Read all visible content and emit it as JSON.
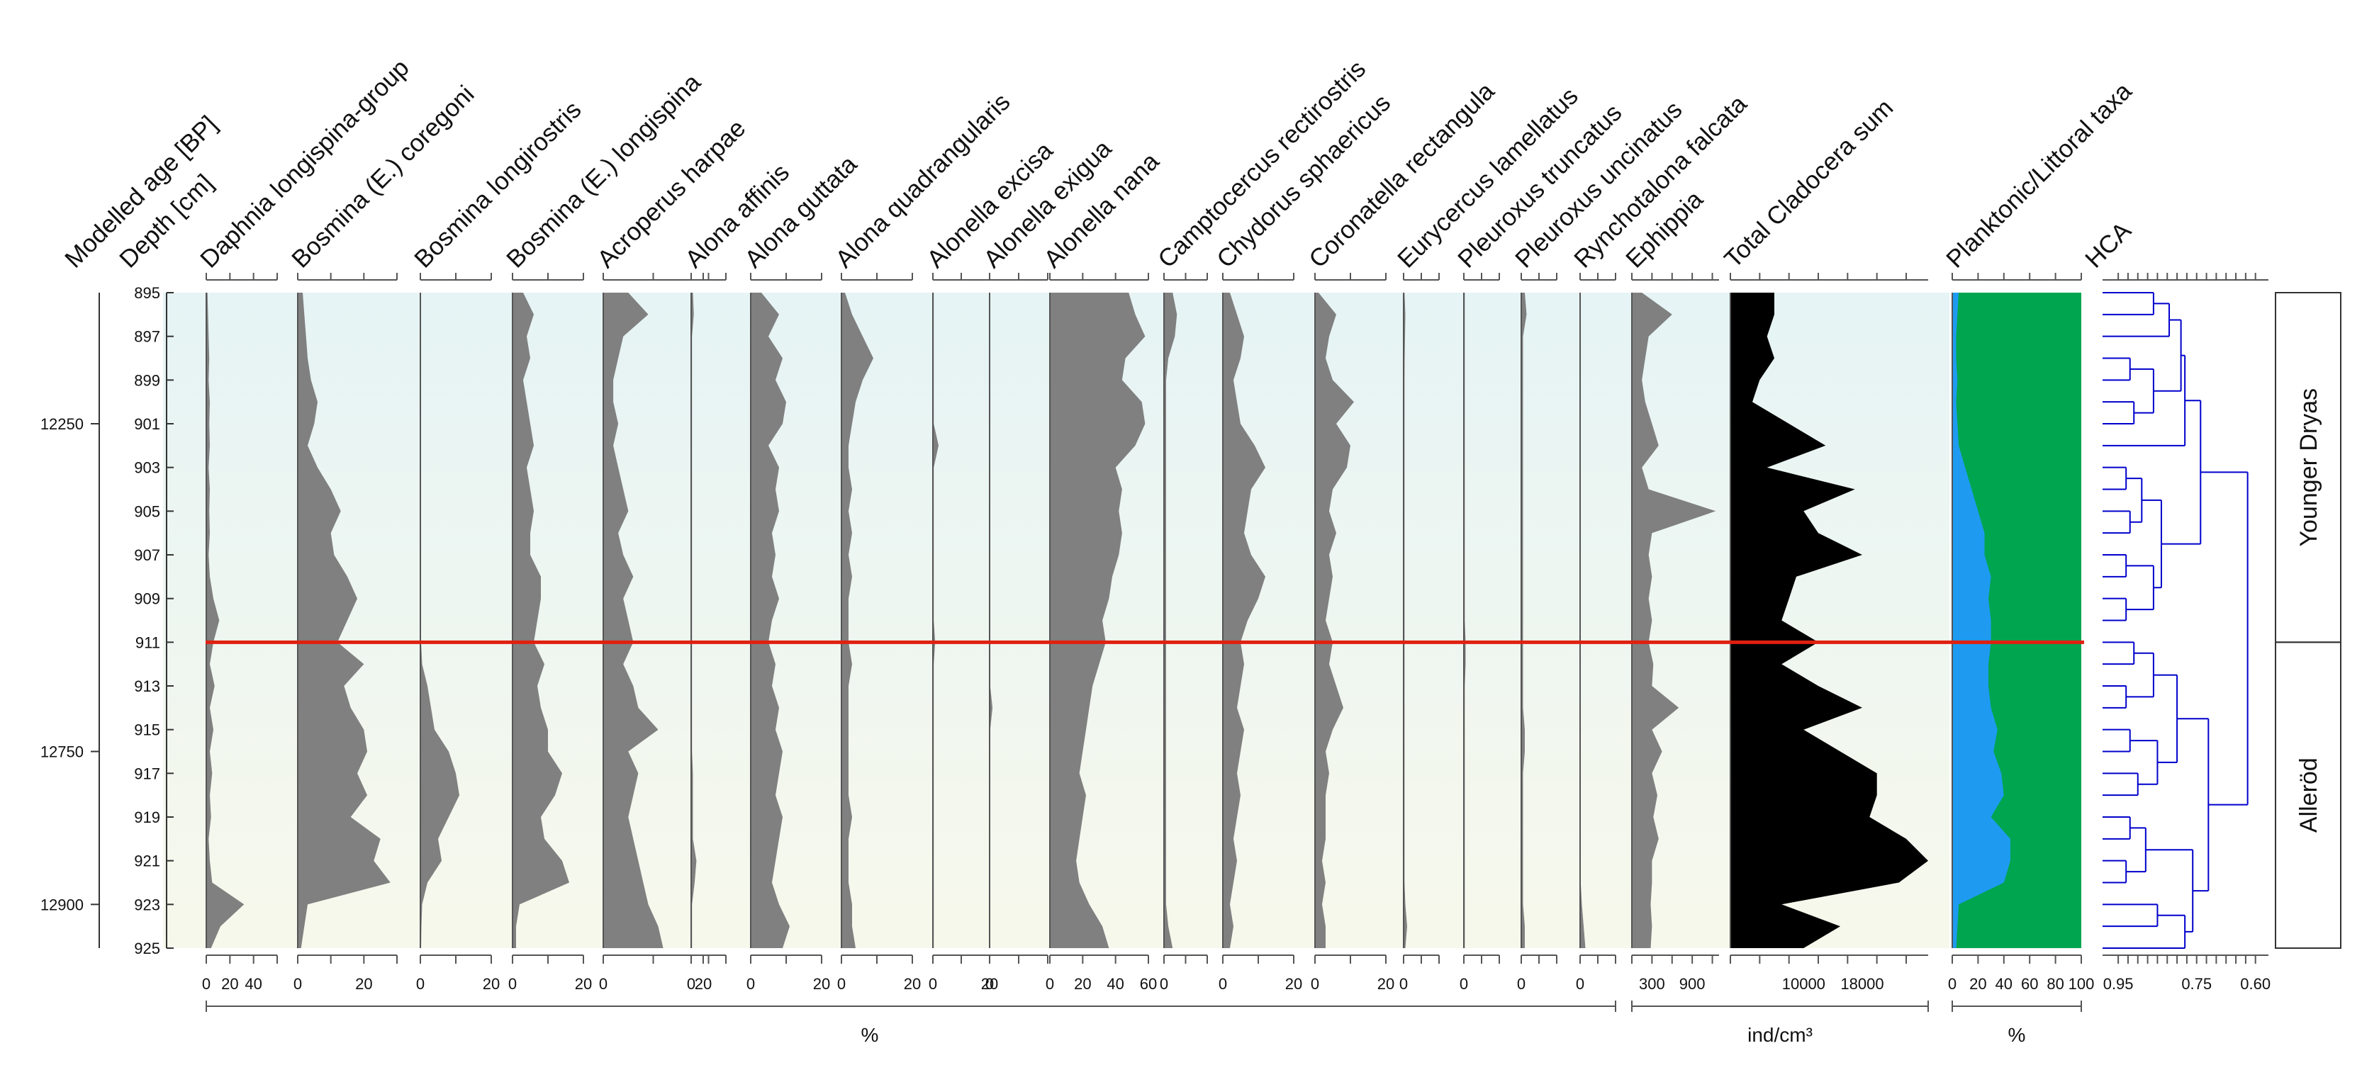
{
  "chart_data": {
    "type": "area",
    "title": "",
    "y_axes": {
      "age_label": "Modelled age [BP]",
      "age_ticks": [
        {
          "age": 12250,
          "depth": 901.0
        },
        {
          "age": 12750,
          "depth": 916.0
        },
        {
          "age": 12900,
          "depth": 923.0
        }
      ],
      "depth_label": "Depth [cm]",
      "depth_ticks": [
        895,
        897,
        899,
        901,
        903,
        905,
        907,
        909,
        911,
        913,
        915,
        917,
        919,
        921,
        923,
        925
      ],
      "depth_range": [
        895,
        925
      ]
    },
    "depths": [
      895,
      896,
      897,
      898,
      899,
      900,
      901,
      902,
      903,
      904,
      905,
      906,
      907,
      908,
      909,
      910,
      911,
      912,
      913,
      914,
      915,
      916,
      917,
      918,
      919,
      920,
      921,
      922,
      923,
      924,
      925
    ],
    "boundary_depth": 911,
    "series": [
      {
        "name": "Daphnia longispina-group",
        "unit": "%",
        "scale_max": 60,
        "ticks": [
          0,
          20,
          40
        ],
        "color": "#808080",
        "values": [
          1,
          1.5,
          2,
          2.5,
          2,
          3,
          2.5,
          3,
          2,
          3,
          2.5,
          3,
          2,
          3,
          6,
          11,
          6,
          3,
          7,
          3,
          6,
          3,
          5,
          3,
          4,
          2,
          3,
          5,
          32,
          12,
          4
        ]
      },
      {
        "name": "Bosmina (E.) coregoni",
        "unit": "%",
        "scale_max": 30,
        "ticks": [
          0,
          20
        ],
        "color": "#808080",
        "values": [
          1.5,
          2,
          2.5,
          3,
          4,
          6,
          5,
          3,
          6,
          10,
          13,
          10,
          11,
          15,
          18,
          15,
          12,
          20,
          14,
          16,
          20,
          21,
          18,
          21,
          16,
          25,
          23,
          28,
          3,
          2,
          1
        ]
      },
      {
        "name": "Bosmina longirostris",
        "unit": "%",
        "scale_max": 20,
        "ticks": [
          0,
          20
        ],
        "color": "#808080",
        "values": [
          0.2,
          0.2,
          0.2,
          0.2,
          0.2,
          0.2,
          0.2,
          0.2,
          0.2,
          0.2,
          0.2,
          0.2,
          0.2,
          0.2,
          0.2,
          0.2,
          0.2,
          0.5,
          2,
          3,
          4,
          8,
          10,
          11,
          8,
          5,
          6,
          2,
          0.5,
          0.3,
          0.2
        ]
      },
      {
        "name": "Bosmina (E.) longispina",
        "unit": "%",
        "scale_max": 20,
        "ticks": [
          0,
          20
        ],
        "color": "#808080",
        "values": [
          3,
          6,
          4,
          5,
          3,
          4,
          5,
          6,
          4,
          5,
          6,
          5,
          5,
          8,
          8,
          7,
          6,
          9,
          7,
          8,
          10,
          10,
          14,
          12,
          8,
          9,
          14,
          16,
          2,
          1,
          1
        ]
      },
      {
        "name": "Acroperus harpae",
        "unit": "%",
        "scale_max": 20,
        "ticks": [
          0,
          20
        ],
        "color": "#808080",
        "values": [
          5,
          9,
          4,
          3,
          2,
          2,
          3,
          2,
          3,
          4,
          5,
          3,
          4,
          6,
          4,
          5,
          6,
          4,
          6,
          7,
          11,
          5,
          7,
          6,
          5,
          6,
          7,
          8,
          9,
          11,
          12
        ]
      },
      {
        "name": "Alona affinis",
        "unit": "%",
        "scale_max": 20,
        "ticks": [
          0
        ],
        "color": "#808080",
        "values": [
          1,
          1.5,
          0.5,
          0.5,
          0.5,
          0.5,
          0.5,
          0.5,
          0.5,
          0.5,
          0.5,
          0.5,
          0.5,
          0.5,
          0.5,
          0.5,
          0.5,
          0.5,
          0.5,
          0.5,
          0.5,
          0.5,
          1,
          1,
          1,
          1,
          3,
          2,
          0.5,
          0.5,
          0.5
        ]
      },
      {
        "name": "Alona guttata",
        "unit": "%",
        "scale_max": 20,
        "ticks": [
          0,
          20
        ],
        "color": "#808080",
        "values": [
          3,
          8,
          5,
          9,
          7,
          10,
          9,
          5,
          8,
          7,
          8,
          6,
          7,
          6,
          8,
          6,
          5,
          7,
          6,
          8,
          7,
          9,
          8,
          7,
          9,
          8,
          7,
          6,
          8,
          11,
          9
        ]
      },
      {
        "name": "Alona quadrangularis",
        "unit": "%",
        "scale_max": 20,
        "ticks": [
          0,
          20
        ],
        "color": "#808080",
        "values": [
          1,
          3,
          6,
          9,
          6,
          4,
          3,
          2,
          2,
          3,
          2,
          3,
          2,
          3,
          2,
          2,
          2,
          3,
          2,
          2,
          2,
          2,
          2,
          2,
          3,
          2,
          2,
          2,
          3,
          3,
          4
        ]
      },
      {
        "name": "Alonella excisa",
        "unit": "%",
        "scale_max": 20,
        "ticks": [
          0,
          20
        ],
        "color": "#808080",
        "values": [
          0.3,
          0.3,
          0.3,
          0.3,
          0.3,
          0.3,
          0.3,
          2,
          0.3,
          0.3,
          0.3,
          0.3,
          0.3,
          0.3,
          0.3,
          0.3,
          0.8,
          0.3,
          0.3,
          0.3,
          0.3,
          0.3,
          0.3,
          0.3,
          0.3,
          0.3,
          0.3,
          0.3,
          0.3,
          0.3,
          0.3
        ]
      },
      {
        "name": "Alonella exigua",
        "unit": "%",
        "scale_max": 20,
        "ticks": [
          0
        ],
        "color": "#808080",
        "values": [
          0.2,
          0.2,
          0.2,
          0.2,
          0.2,
          0.2,
          0.2,
          0.2,
          0.2,
          0.2,
          0.2,
          0.2,
          0.2,
          0.2,
          0.2,
          0.2,
          0.2,
          0.2,
          0.2,
          1,
          0.2,
          0.2,
          0.2,
          0.2,
          0.2,
          0.2,
          0.2,
          0.2,
          0.2,
          0.2,
          0.2
        ]
      },
      {
        "name": "Alonella nana",
        "unit": "%",
        "scale_max": 60,
        "ticks": [
          0,
          20,
          40,
          60
        ],
        "color": "#808080",
        "values": [
          48,
          52,
          58,
          46,
          44,
          56,
          58,
          52,
          40,
          44,
          42,
          44,
          42,
          38,
          36,
          32,
          34,
          30,
          26,
          24,
          22,
          20,
          18,
          22,
          20,
          18,
          16,
          18,
          24,
          32,
          36
        ]
      },
      {
        "name": "Camptocercus rectirostris",
        "unit": "%",
        "scale_max": 20,
        "ticks": [
          0
        ],
        "color": "#808080",
        "values": [
          4,
          6,
          5,
          2,
          1,
          1,
          1,
          1,
          1,
          1,
          1,
          1,
          1,
          1,
          1,
          1,
          1,
          1,
          1,
          1,
          1,
          1,
          1,
          1,
          1,
          1,
          1,
          1,
          1,
          2,
          4
        ]
      },
      {
        "name": "Chydorus sphaericus",
        "unit": "%",
        "scale_max": 20,
        "ticks": [
          0,
          20
        ],
        "color": "#808080",
        "values": [
          2,
          4,
          6,
          5,
          3,
          4,
          5,
          9,
          12,
          8,
          7,
          6,
          8,
          12,
          10,
          7,
          5,
          6,
          5,
          4,
          6,
          5,
          4,
          5,
          4,
          3,
          4,
          3,
          2,
          3,
          2
        ]
      },
      {
        "name": "Coronatella rectangula",
        "unit": "%",
        "scale_max": 20,
        "ticks": [
          0,
          20
        ],
        "color": "#808080",
        "values": [
          1,
          6,
          4,
          3,
          5,
          11,
          6,
          10,
          9,
          5,
          4,
          6,
          4,
          5,
          4,
          3,
          5,
          4,
          6,
          8,
          5,
          3,
          4,
          3,
          3,
          3,
          2,
          3,
          2,
          3,
          3
        ]
      },
      {
        "name": "Eurycercus lamellatus",
        "unit": "%",
        "scale_max": 20,
        "ticks": [
          0
        ],
        "color": "#808080",
        "values": [
          0.5,
          1,
          0.8,
          0.6,
          0.5,
          0.5,
          0.5,
          0.5,
          0.5,
          0.5,
          0.5,
          0.5,
          0.5,
          0.5,
          0.5,
          0.5,
          0.5,
          0.5,
          0.5,
          0.5,
          0.5,
          0.5,
          0.5,
          0.5,
          0.5,
          0.5,
          0.5,
          0.5,
          1,
          2,
          1
        ]
      },
      {
        "name": "Pleuroxus truncatus",
        "unit": "%",
        "scale_max": 20,
        "ticks": [
          0
        ],
        "color": "#808080",
        "values": [
          0.5,
          0.5,
          0.5,
          0.5,
          0.5,
          0.5,
          0.5,
          0.5,
          0.5,
          0.5,
          0.5,
          0.5,
          0.5,
          0.5,
          0.5,
          0.5,
          1,
          1,
          0.5,
          0.5,
          0.5,
          0.5,
          0.5,
          0.5,
          0.5,
          0.5,
          0.5,
          0.5,
          0.5,
          0.5,
          0.5
        ]
      },
      {
        "name": "Pleuroxus uncinatus",
        "unit": "%",
        "scale_max": 20,
        "ticks": [
          0
        ],
        "color": "#808080",
        "values": [
          2,
          3,
          1,
          1,
          1,
          1,
          1,
          1,
          1,
          1,
          1,
          1,
          1,
          1,
          1,
          1,
          1,
          1,
          1,
          1,
          2,
          2,
          1,
          1,
          1,
          1,
          1,
          1,
          1,
          2,
          2
        ]
      },
      {
        "name": "Rynchotalona falcata",
        "unit": "%",
        "scale_max": 20,
        "ticks": [
          0
        ],
        "color": "#808080",
        "values": [
          0.3,
          0.3,
          0.3,
          0.3,
          0.3,
          0.3,
          0.3,
          0.3,
          0.3,
          0.3,
          0.3,
          0.3,
          0.3,
          0.3,
          0.3,
          0.3,
          0.3,
          0.3,
          0.3,
          0.3,
          0.3,
          0.3,
          0.3,
          0.3,
          0.3,
          0.3,
          0.3,
          0.3,
          1,
          2,
          3
        ]
      },
      {
        "name": "Ephippia",
        "unit": "ind/cm³",
        "scale_max": 1300,
        "ticks": [
          300,
          900
        ],
        "tick_labels": [
          "300",
          "900"
        ],
        "color": "#808080",
        "values": [
          150,
          600,
          250,
          200,
          150,
          200,
          300,
          400,
          150,
          250,
          1250,
          300,
          250,
          300,
          250,
          300,
          250,
          320,
          300,
          700,
          300,
          450,
          300,
          380,
          320,
          400,
          300,
          300,
          280,
          300,
          280
        ]
      },
      {
        "name": "Total Cladocera sum",
        "unit": "ind/cm³",
        "scale_max": 27000,
        "ticks": [
          0,
          10000,
          18000
        ],
        "tick_labels": [
          "",
          "10000",
          "18000"
        ],
        "color": "#000000",
        "values": [
          6000,
          6000,
          5000,
          6000,
          4000,
          3000,
          8000,
          13000,
          5000,
          17000,
          10000,
          12000,
          18000,
          9000,
          8000,
          7000,
          12000,
          7000,
          12000,
          18000,
          10000,
          15000,
          20000,
          20000,
          19000,
          24000,
          27000,
          23000,
          7000,
          15000,
          10000
        ]
      },
      {
        "name": "Planktonic/Littoral taxa",
        "unit": "%",
        "scale_max": 100,
        "ticks": [
          0,
          20,
          40,
          60,
          80,
          100
        ],
        "color": "#00a550",
        "fill_below": "#1e9bf0",
        "values": [
          5,
          4,
          3,
          3,
          4,
          3,
          4,
          5,
          10,
          15,
          20,
          25,
          25,
          30,
          28,
          30,
          30,
          28,
          28,
          30,
          35,
          32,
          38,
          40,
          30,
          45,
          45,
          40,
          5,
          4,
          3
        ]
      }
    ],
    "axis_groups": [
      {
        "label": "%"
      },
      {
        "label": "ind/cm³"
      },
      {
        "label": "%"
      }
    ],
    "hca": {
      "label": "HCA",
      "ticks": [
        0.95,
        0.75,
        0.6
      ],
      "tick_labels": [
        "0.95",
        "0.75",
        "0.60"
      ],
      "color": "#0000cc"
    },
    "zones": [
      {
        "name": "Younger Dryas",
        "from_depth": 895,
        "to_depth": 911
      },
      {
        "name": "Alleröd",
        "from_depth": 911,
        "to_depth": 925
      }
    ],
    "colors": {
      "boundary_line": "#e02010",
      "background_top": "#e6f4f5",
      "background_bottom": "#f7f8ec",
      "taxa_fill": "#808080",
      "total_fill": "#000000",
      "plankton_fill": "#00a550",
      "littoral_fill": "#1e9bf0",
      "hca_line": "#0000cc"
    }
  }
}
